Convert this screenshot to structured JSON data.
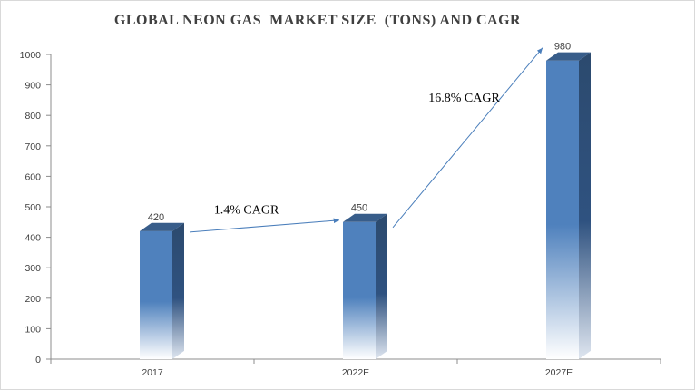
{
  "title": "GLOBAL NEON GAS  MARKET SIZE  (TONS) AND CAGR",
  "chart_data": {
    "type": "bar",
    "title": "GLOBAL NEON GAS  MARKET SIZE  (TONS) AND CAGR",
    "categories": [
      "2017",
      "2022E",
      "2027E"
    ],
    "values": [
      420,
      450,
      980
    ],
    "value_labels": [
      "420",
      "450",
      "980"
    ],
    "ylim": [
      0,
      1000
    ],
    "yticks": [
      "0",
      "100",
      "200",
      "300",
      "400",
      "500",
      "600",
      "700",
      "800",
      "900",
      "1000"
    ],
    "grid": false,
    "legend": "none",
    "bar_color": "#4a7ebb",
    "bar_top_color": "#385d8a",
    "bar_side_color": "#2c4a6e",
    "annotations": [
      {
        "text": "1.4% CAGR",
        "from": "2017",
        "to": "2022E"
      },
      {
        "text": "16.8% CAGR",
        "from": "2022E",
        "to": "2027E"
      }
    ],
    "arrow_color": "#4a7ebb"
  }
}
